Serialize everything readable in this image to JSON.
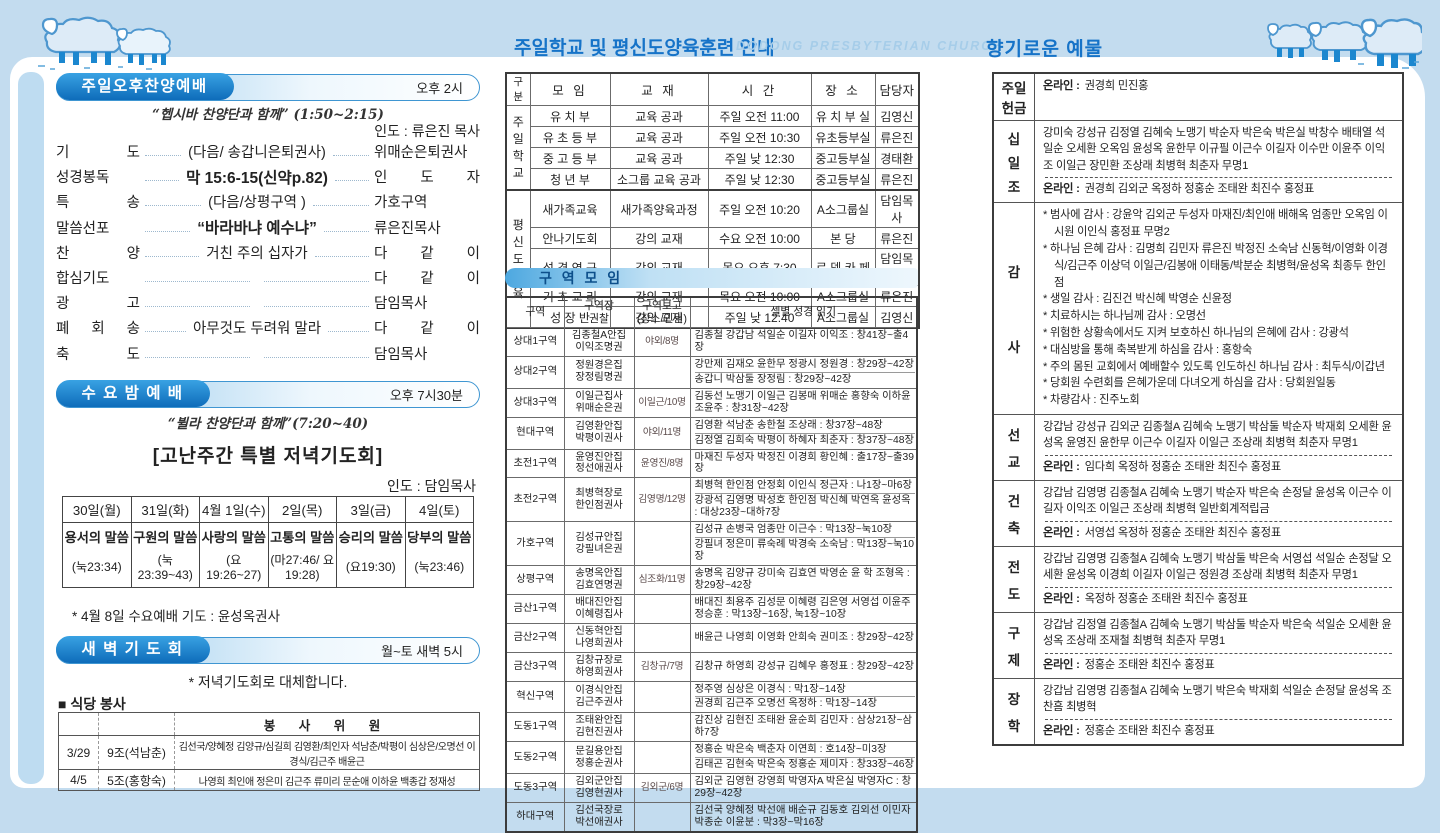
{
  "banner": {
    "middle_title": "주일학교 및 평신도양육훈련 안내",
    "church_name": "DODONG PRESBYTERIAN CHURCH",
    "right_title": "향기로운 예물"
  },
  "left": {
    "afternoon": {
      "title": "주일오후찬양예배",
      "time": "오후 2시",
      "subtitle": "“헵시바 찬양단과 함께” (1:50~2:15)",
      "leader": "인도 : 류은진 목사",
      "items": [
        {
          "label": "기 도",
          "center": "(다음/ 송갑니은퇴권사)",
          "right": "위매순은퇴권사",
          "style": ""
        },
        {
          "label": "성경봉독",
          "center": "막 15:6-15(신약p.82)",
          "right": "인 도 자",
          "style": "bold"
        },
        {
          "label": "특 송",
          "center": "(다음/상평구역 )",
          "right": "가호구역",
          "style": ""
        },
        {
          "label": "말씀선포",
          "center": "“바라바냐 예수냐”",
          "right": "류은진목사",
          "style": "bold"
        },
        {
          "label": "찬 양",
          "center": "거친 주의 십자가",
          "right": "다 같 이",
          "style": ""
        },
        {
          "label": "합심기도",
          "center": "",
          "right": "다 같 이",
          "style": ""
        },
        {
          "label": "광 고",
          "center": "",
          "right": "담임목사",
          "style": ""
        },
        {
          "label": "폐 회 송",
          "center": "아무것도 두려워 말라",
          "right": "다 같 이",
          "style": ""
        },
        {
          "label": "축 도",
          "center": "",
          "right": "담임목사",
          "style": ""
        }
      ]
    },
    "wednesday": {
      "title": "수 요 밤 예 배",
      "time": "오후 7시30분",
      "subtitle": "“뷜라 찬양단과 함께”(7:20~40)",
      "special": "[고난주간 특별 저녁기도회]",
      "leader": "인도 : 담임목사",
      "table": {
        "headers": [
          "30일(월)",
          "31일(화)",
          "4월 1일(수)",
          "2일(목)",
          "3일(금)",
          "4일(토)"
        ],
        "themes": [
          "용서의 말씀",
          "구원의 말씀",
          "사랑의 말씀",
          "고통의 말씀",
          "승리의 말씀",
          "당부의 말씀"
        ],
        "verses": [
          "(눅23:34)",
          "(눅23:39~43)",
          "(요19:26~27)",
          "(마27:46/ 요19:28)",
          "(요19:30)",
          "(눅23:46)"
        ]
      },
      "note": "* 4월 8일 수요예배 기도 : 윤성옥권사"
    },
    "dawn": {
      "title": "새 벽 기 도 회",
      "time": "월~토 새벽 5시",
      "note": "* 저녁기도회로 대체합니다.",
      "cafeteria_title": "■ 식당 봉사",
      "cafeteria": {
        "header": "봉 사 위 원",
        "rows": [
          {
            "date": "3/29",
            "team": "9조(석남춘)",
            "members": "김선국/양혜정 김양규/심길희 김영환/최인자 석남춘/박평이 심상은/오명선 이경식/김근주 배윤근",
            "style": "small"
          },
          {
            "date": "4/5",
            "team": "5조(홍항숙)",
            "members": "나영희 최인애 정은미 김근주 류미리 문순애 이하윤 백종갑 정재성",
            "style": ""
          }
        ]
      }
    }
  },
  "middle": {
    "school_table": {
      "headers": [
        [
          "구",
          "분"
        ],
        "모 임",
        "교 재",
        "시 간",
        "장 소",
        "담당자"
      ],
      "groups": [
        {
          "name_lines": [
            "주",
            "일",
            "학",
            "교"
          ],
          "rows": [
            [
              "유 치 부",
              "교육 공과",
              "주일 오전 11:00",
              "유 치 부 실",
              "김영신"
            ],
            [
              "유 초 등 부",
              "교육 공과",
              "주일 오전 10:30",
              "유초등부실",
              "류은진"
            ],
            [
              "중 고 등 부",
              "교육 공과",
              "주일 낮 12:30",
              "중고등부실",
              "경태환"
            ],
            [
              "청 년 부",
              "소그룹 교육 공과",
              "주일 낮 12:30",
              "중고등부실",
              "류은진"
            ]
          ]
        },
        {
          "name_lines": [
            "평",
            "신",
            "도",
            "교",
            "육"
          ],
          "rows": [
            [
              "새가족교육",
              "새가족양육과정",
              "주일 오전 10:20",
              "A소그룹실",
              "담임목사"
            ],
            [
              "안나기도회",
              "강의 교재",
              "수요 오전 10:00",
              "본 당",
              "류은진"
            ],
            [
              "성 경 연 구",
              "강의 교재",
              "목요 오후 7:30",
              "로 뎀 카 페",
              "담임목사"
            ],
            [
              "기 초 교 리",
              "강의 교재",
              "목요 오전 10:00",
              "A소그룹실",
              "류은진"
            ],
            [
              "성 장 반",
              "강의 교재",
              "주일 낮 12:40",
              "A소그룹실",
              "김영신"
            ]
          ]
        }
      ]
    },
    "cell_title": "구 역 모 임",
    "cell_table": {
      "headers": [
        "구역",
        "구역장\n권찰",
        "구역보고\n(장소/인원)",
        "셀별 성경 읽기"
      ],
      "rows": [
        {
          "name": "상대1구역",
          "leader": "김종철A안집\n이익조명권",
          "report": "야외/8명",
          "reading": [
            "김종철 강갑남 석일순 이길자 이익조 : 창41장~출4장"
          ]
        },
        {
          "name": "상대2구역",
          "leader": "정원경은집\n장정림명권",
          "report": "",
          "reading": [
            "강만제 김재오 윤한무 정광시 정원경 : 창29장~42장",
            "송갑니 박삼둘 장정림 : 창29장~42장"
          ]
        },
        {
          "name": "상대3구역",
          "leader": "이일근집사\n위매순은권",
          "report": "이일근/10명",
          "reading": [
            "김동선 노맹기 이일근 김봉매 위매순 홍향숙 이하윤 조윤주 : 창31장~42장"
          ]
        },
        {
          "name": "현대구역",
          "leader": "김영환안집\n박평이권사",
          "report": "야외/11명",
          "reading": [
            "김영환 석남춘 송한철 조상래 : 창37장~48장",
            "김정열 김희숙 박평이 하혜자 최춘자 : 창37장~48장"
          ]
        },
        {
          "name": "초전1구역",
          "leader": "윤영진안집\n정선애권사",
          "report": "윤영진/8명",
          "reading": [
            "마재진 두성자 박정진 이경희 황인혜 : 출17장~출39장"
          ]
        },
        {
          "name": "초전2구역",
          "leader": "최병혁장로\n한인점권사",
          "report": "김영명/12명",
          "reading": [
            "최병혁 한인점 안정회 이인식 정근자 : 나1장~마6장",
            "강광석 김영명 박성호 한인점 박신혜 박연옥 윤성옥 : 대상23장~대하7장"
          ]
        },
        {
          "name": "가호구역",
          "leader": "김성규안집\n강필녀은권",
          "report": "",
          "reading": [
            "김성규 손병국 엄종만 이근수 : 막13장~눅10장",
            "강필녀 정은미 류숙례 박경숙 소숙남 : 막13장~눅10장"
          ]
        },
        {
          "name": "상평구역",
          "leader": "송명옥안집\n김효연명권",
          "report": "심조화/11명",
          "reading": [
            "송명옥 김양규 강미숙 김효연 박영순 윤 학 조형옥 : 창29장~42장"
          ]
        },
        {
          "name": "금산1구역",
          "leader": "배대진안집\n이혜령집사",
          "report": "",
          "reading": [
            "배대진 최용주 김성문 이혜령 김은영 서영섭 이윤주 정승훈 : 막13장~16장, 눅1장~10장"
          ]
        },
        {
          "name": "금산2구역",
          "leader": "신동혁안집\n나영희권사",
          "report": "",
          "reading": [
            "배윤근 나영희 이영화 안희숙 권미조 : 창29장~42장"
          ]
        },
        {
          "name": "금산3구역",
          "leader": "김창규장로\n하영희권사",
          "report": "김창규/7명",
          "reading": [
            "김창규 하영희 강성규 김혜우 홍정표 : 창29장~42장"
          ]
        },
        {
          "name": "혁신구역",
          "leader": "이경식안집\n김근주권사",
          "report": "",
          "reading": [
            "정주영 심상은 이경식 : 막1장~14장",
            "권경희 김근주 오명선 옥정하 : 막1장~14장"
          ]
        },
        {
          "name": "도동1구역",
          "leader": "조태완안집\n김현진권사",
          "report": "",
          "reading": [
            "감진상 김현진 조태완 윤순희 김민자 : 삼상21장~삼하7장"
          ]
        },
        {
          "name": "도동2구역",
          "leader": "문길용안집\n정홍순권사",
          "report": "",
          "reading": [
            "정홍순 박은숙 백춘자 이연희 : 호14장~미3장",
            "김태곤 김현숙 박은숙 정홍순 제미자 : 창33장~46장"
          ]
        },
        {
          "name": "도동3구역",
          "leader": "김외군안집\n김영현권사",
          "report": "김외군/6명",
          "reading": [
            "김외군 김영현 강영희 박영자A 박은실 박영자C : 창29장~42장"
          ]
        },
        {
          "name": "하대구역",
          "leader": "김선국장로\n박선애권사",
          "report": "",
          "reading": [
            "김선국 양혜정 박선애 배순규 김동호 김외선 이민자 박종순 이윤분 : 막3장~막16장"
          ]
        }
      ]
    }
  },
  "right": {
    "labels": {
      "online": "온라인 :"
    },
    "offerings": {
      "sunday": {
        "cat_lines": [
          "주일",
          "헌금"
        ],
        "online": "권경희 민진홍"
      },
      "tithe": {
        "cat_lines": [
          "십",
          "일",
          "조"
        ],
        "names": "강미숙 강성규 김정열 김혜숙 노맹기 박순자 박은숙 박은실 박창수 배태열 석일순 오세환 오옥임 윤성옥 윤한무 이규필 이근수 이길자 이수만 이윤주 이익조 이일근 장민환 조상래 최병혁 최춘자 무명1",
        "online": "권경희 김외군 옥정하 정홍순 조태완 최진수 홍정표"
      },
      "thanks": {
        "cat_lines": [
          "감",
          "사"
        ],
        "items": [
          "* 범사에 감사 : 강윤악 김외군 두성자 마재진/최인애 배해옥 엄종만 오옥임 이시원 이인식 홍정표 무명2",
          "* 하나님 은혜 감사 : 김명희 김민자 류은진 박정진 소숙남 신동혁/이영화 이경식/김근주 이상덕 이일근/김봉애 이태동/박분순 최병혁/윤성옥 최종두 한인점",
          "* 생일 감사 : 김진건 박신혜 박영순 신윤정",
          "* 치료하시는 하나님께 감사 : 오명선",
          "* 위험한 상황속에서도 지켜 보호하신 하나님의 은혜에 감사 : 강광석",
          "* 대심방을 통해 축복받게 하심을 감사 : 홍항숙",
          "* 주의 몸된 교회에서 예배할수 있도록 인도하신 하나님 감사 : 최두식/이갑년",
          "* 당회원 수련회를 은혜가운데 다녀오게 하심을 감사 : 당회원일동",
          "* 차량감사 : 진주노회"
        ]
      },
      "mission": {
        "cat_lines": [
          "선",
          "교"
        ],
        "names": "강갑남 강성규 김외군 김종철A 김혜숙 노맹기 박삼둘 박순자 박재회 오세환 윤성옥 윤영진 윤한무 이근수 이길자 이일근 조상래 최병혁 최춘자 무명1",
        "online": "임다희 옥정하 정홍순 조태완 최진수 홍정표"
      },
      "building": {
        "cat_lines": [
          "건",
          "축"
        ],
        "names": "강갑남 김영명 김종철A 김혜숙 노맹기 박순자 박은숙 손정달 윤성옥 이근수 이길자 이익조 이일근 조상래 최병혁 일반회계적립금",
        "online": "서영섭 옥정하 정홍순 조태완 최진수 홍정표"
      },
      "evangelism": {
        "cat_lines": [
          "전",
          "도"
        ],
        "names": "강갑남 김영명 김종철A 김혜숙 노맹기 박삼둘 박은숙 서영섭 석일순 손정달 오세환 윤성옥 이경희 이길자 이일근 정원경 조상래 최병혁 최춘자 무명1",
        "online": "옥정하 정홍순 조태완 최진수 홍정표"
      },
      "relief": {
        "cat_lines": [
          "구",
          "제"
        ],
        "names": "강갑남 김정열 김종철A 김혜숙 노맹기 박삼둘 박순자 박은숙 석일순 오세환 윤성옥 조상래 조재철 최병혁 최춘자 무명1",
        "online": "정홍순 조태완 최진수 홍정표"
      },
      "scholarship": {
        "cat_lines": [
          "장",
          "학"
        ],
        "names": "강갑남 김영명 김종철A 김혜숙 노맹기 박은숙 박재회 석일순 손정달 윤성옥 조찬흠 최병혁",
        "online": "정홍순 조태완 최진수 홍정표"
      }
    }
  }
}
